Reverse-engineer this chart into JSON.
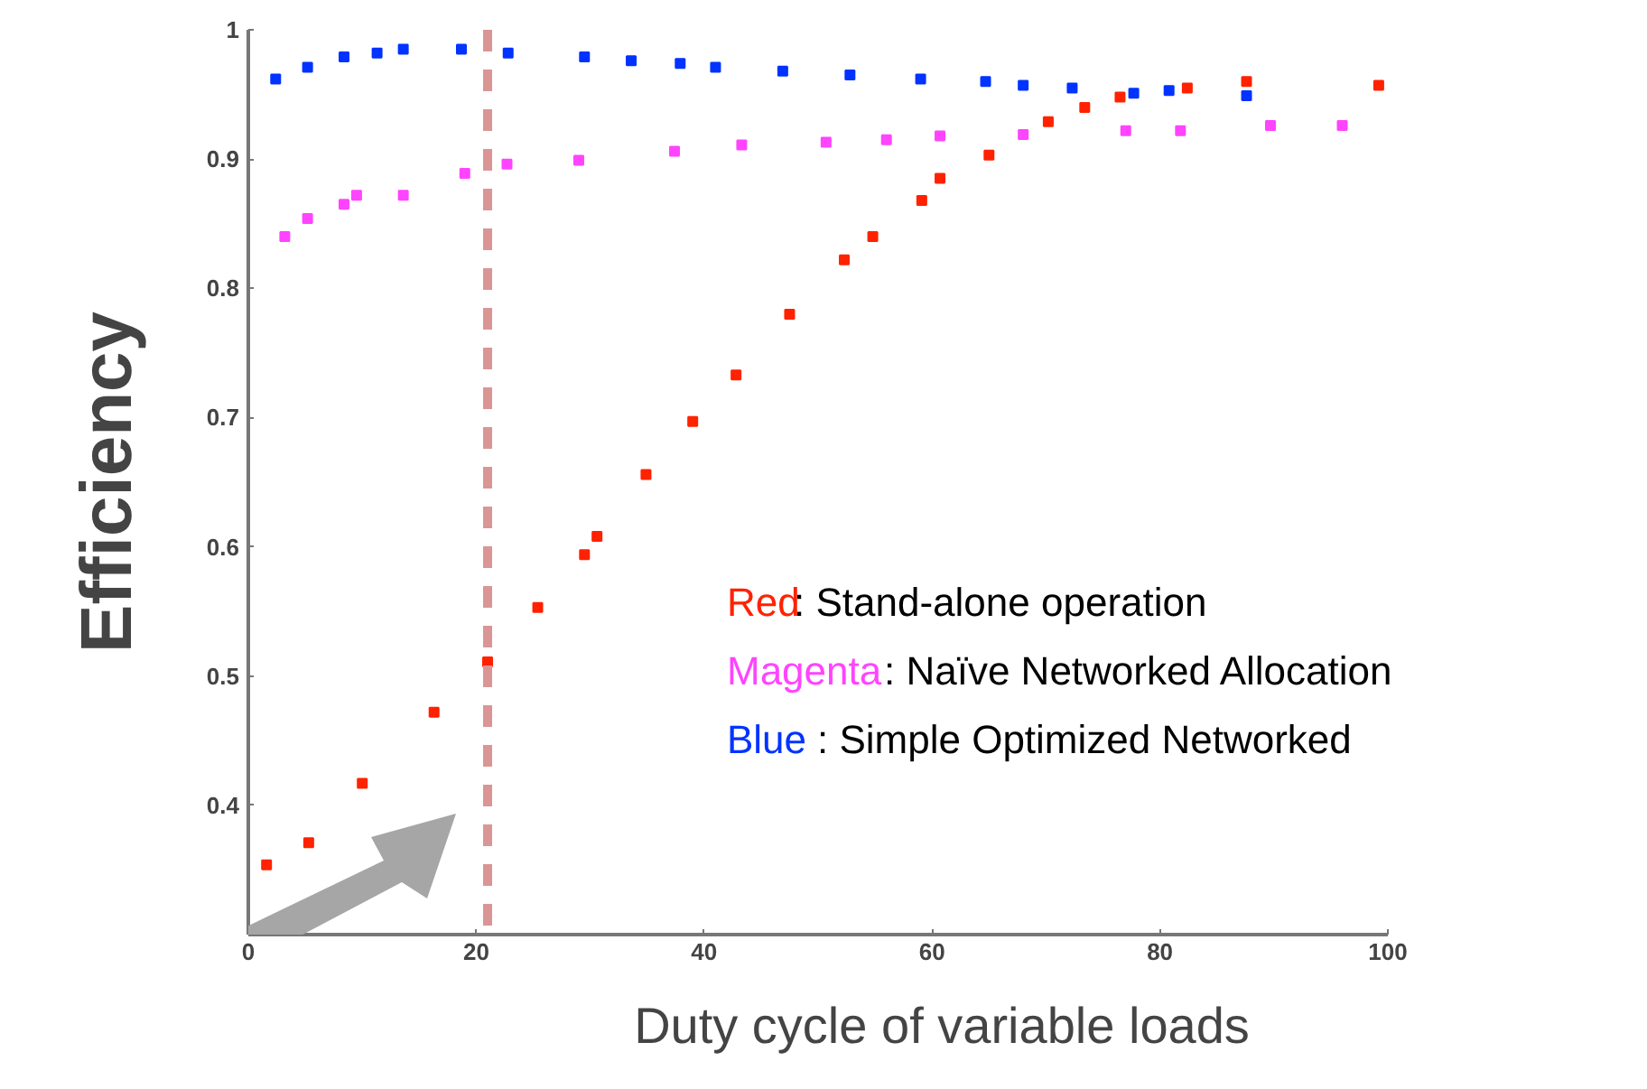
{
  "chart_data": {
    "type": "scatter",
    "xlabel": "Duty cycle of variable loads",
    "ylabel": "Efficiency",
    "xlim": [
      0,
      100
    ],
    "xticks": [
      0,
      20,
      40,
      60,
      80,
      100
    ],
    "ylim": [
      0.3,
      1
    ],
    "yticks": [
      0.4,
      0.5,
      0.6,
      0.7,
      0.8,
      0.9,
      1
    ],
    "marker": "square",
    "grid": false,
    "legend": "right",
    "ref_lines": [
      {
        "axis": "x",
        "value": 21,
        "color": "#d99694",
        "line_style": "dashed"
      }
    ],
    "series": [
      {
        "name": "Red: Stand-alone operation",
        "color": "#ff2200",
        "x": [
          1.6,
          5.3,
          10,
          16.3,
          21,
          25.4,
          29.5,
          30.6,
          34.9,
          39,
          42.8,
          47.5,
          52.3,
          54.8,
          59.1,
          60.7,
          65,
          70.2,
          73.4,
          76.5,
          82.4,
          87.6,
          99.2
        ],
        "values": [
          0.354,
          0.371,
          0.417,
          0.472,
          0.511,
          0.553,
          0.594,
          0.608,
          0.656,
          0.697,
          0.733,
          0.78,
          0.822,
          0.84,
          0.868,
          0.885,
          0.903,
          0.929,
          0.94,
          0.948,
          0.955,
          0.96,
          0.957
        ]
      },
      {
        "name": "Magenta: Naïve Networked Allocation",
        "color": "#ff44ff",
        "x": [
          3.2,
          5.2,
          8.4,
          9.5,
          13.6,
          19,
          22.7,
          29,
          37.4,
          43.3,
          50.7,
          56,
          60.7,
          68,
          77,
          81.8,
          89.7,
          96
        ],
        "values": [
          0.84,
          0.854,
          0.865,
          0.872,
          0.872,
          0.889,
          0.896,
          0.899,
          0.906,
          0.911,
          0.913,
          0.915,
          0.918,
          0.919,
          0.922,
          0.922,
          0.926,
          0.926
        ]
      },
      {
        "name": "Blue: Simple Optimized Networked",
        "color": "#0033ff",
        "x": [
          2.4,
          5.2,
          8.4,
          11.3,
          13.6,
          18.7,
          22.8,
          29.5,
          33.6,
          37.9,
          41,
          46.9,
          52.8,
          59,
          64.7,
          68,
          72.3,
          77.7,
          80.8,
          87.6
        ],
        "values": [
          0.962,
          0.971,
          0.979,
          0.982,
          0.985,
          0.985,
          0.982,
          0.979,
          0.976,
          0.974,
          0.971,
          0.968,
          0.965,
          0.962,
          0.96,
          0.957,
          0.955,
          0.951,
          0.953,
          0.949
        ]
      }
    ]
  }
}
